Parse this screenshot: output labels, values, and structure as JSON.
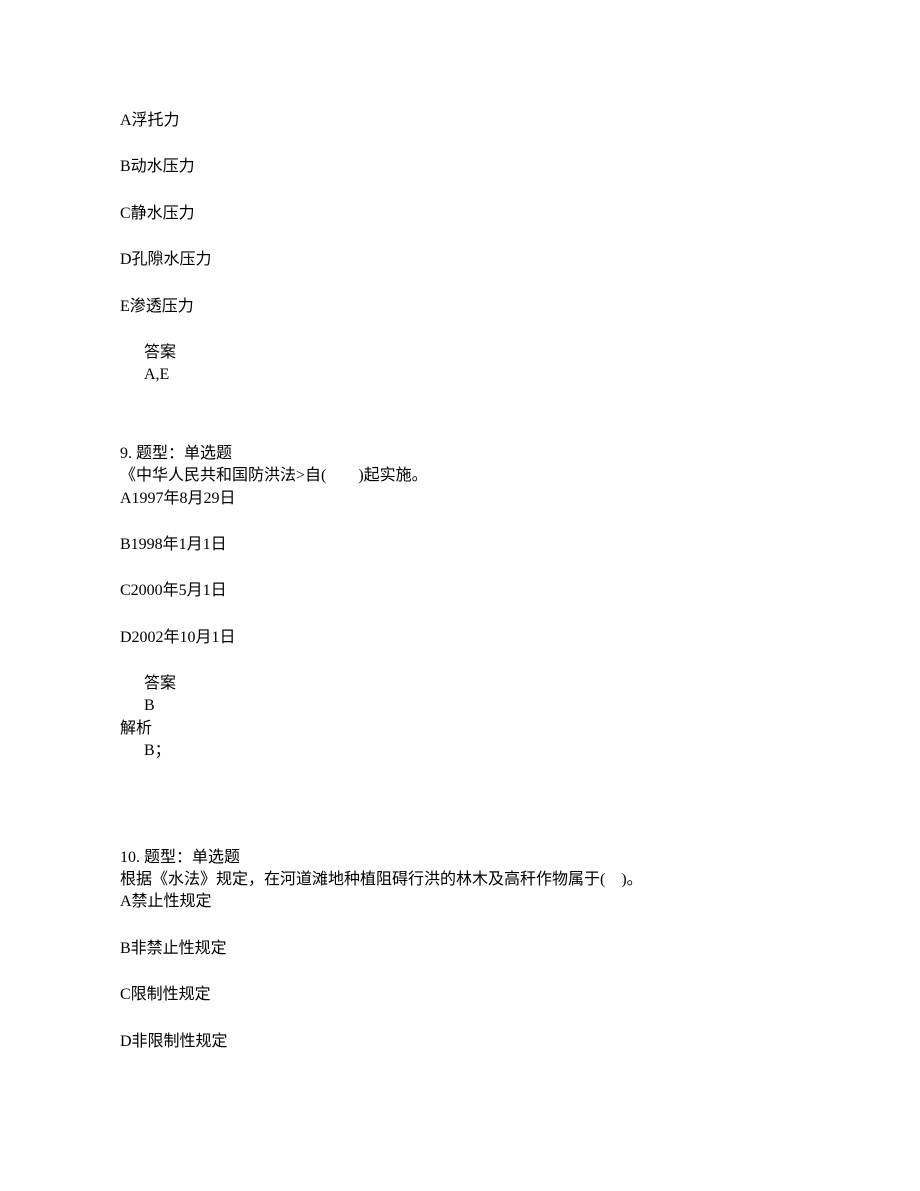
{
  "q8": {
    "options": {
      "A": "A浮托力",
      "B": "B动水压力",
      "C": "C静水压力",
      "D": "D孔隙水压力",
      "E": "E渗透压力"
    },
    "answer_label": "答案",
    "answer_value": "A,E"
  },
  "q9": {
    "header": "9. 题型：单选题",
    "text": "《中华人民共和国防洪法>自(　　)起实施。",
    "options": {
      "A": "A1997年8月29日",
      "B": "B1998年1月1日",
      "C": "C2000年5月1日",
      "D": "D2002年10月1日"
    },
    "answer_label": "答案",
    "answer_value": "B",
    "parse_label": "解析",
    "parse_value": "B；"
  },
  "q10": {
    "header": "10. 题型：单选题",
    "text": "根据《水法》规定，在河道滩地种植阻碍行洪的林木及高秆作物属于(　)。",
    "options": {
      "A": "A禁止性规定",
      "B": "B非禁止性规定",
      "C": "C限制性规定",
      "D": "D非限制性规定"
    }
  }
}
